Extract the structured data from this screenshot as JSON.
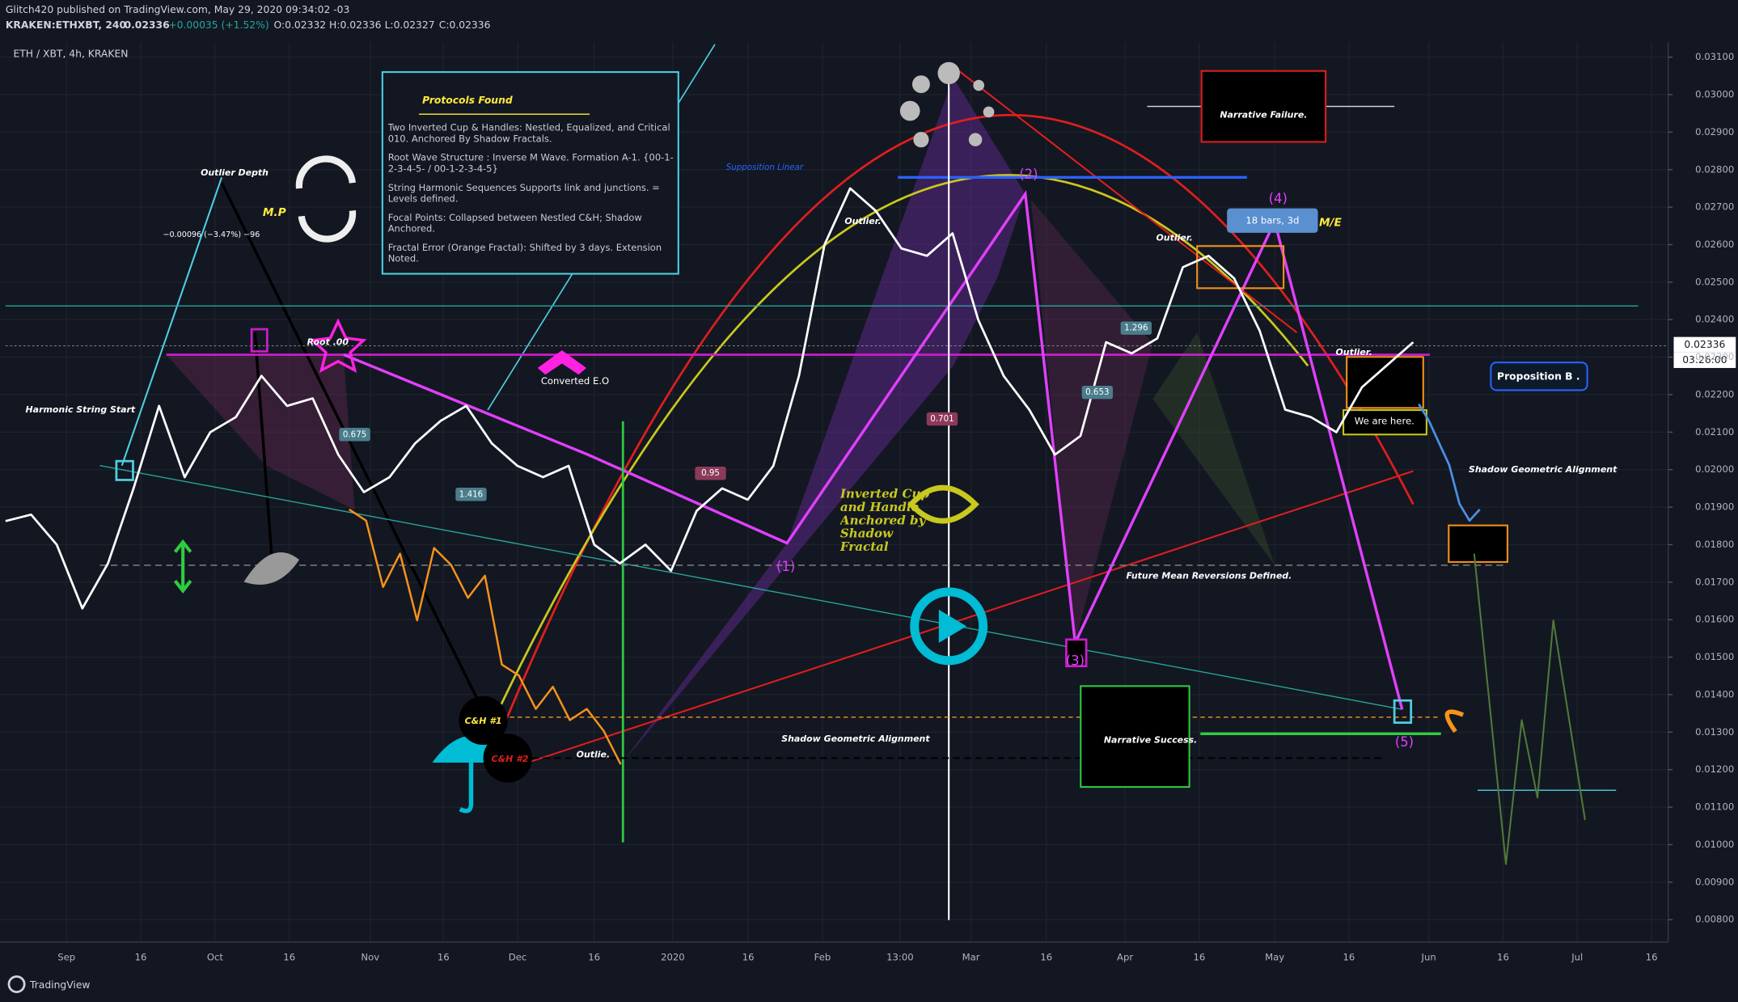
{
  "header": {
    "author_line": "Glitch420 published on TradingView.com, May 29, 2020 09:34:02 -03",
    "symbol": "KRAKEN:ETHXBT, 240",
    "price": 0.02336,
    "change": "+0.00035 (+1.52%)",
    "ohlc": [
      "O:0.02332",
      "H:0.02336",
      "L:0.02327",
      "C:0.02336"
    ]
  },
  "chart_data": {
    "type": "line",
    "title": "ETH / XBT, 4h, KRAKEN",
    "series": [
      {
        "color": "#ffffff",
        "values": [
          0.01863,
          0.0188,
          0.018,
          0.0163,
          0.0175,
          0.0195,
          0.0217,
          0.0198,
          0.021,
          0.0214,
          0.0225,
          0.0217,
          0.0219,
          0.0204,
          0.0194,
          0.0198,
          0.0207,
          0.0213,
          0.0217,
          0.0207,
          0.0201,
          0.0198,
          0.0201,
          0.018,
          0.0175,
          0.018,
          0.0173,
          0.0189,
          0.0195,
          0.0192,
          0.0201,
          0.0225,
          0.026,
          0.0275,
          0.0269,
          0.0259,
          0.0257,
          0.0263,
          0.024,
          0.0225,
          0.0216,
          0.0204,
          0.0209,
          0.0234,
          0.0231,
          0.0235,
          0.0254,
          0.0257,
          0.0251,
          0.0237,
          0.0216,
          0.0214,
          0.021,
          0.0222,
          0.0228,
          0.0234
        ]
      },
      {
        "color": "#f7931a",
        "values": [
          0.01894,
          0.01864,
          0.01687,
          0.01776,
          0.01598,
          0.01791,
          0.01746,
          0.01658,
          0.01717,
          0.0148,
          0.01451,
          0.01362,
          0.01421,
          0.01332,
          0.01362,
          0.01303,
          0.01214
        ]
      },
      {
        "color": "#4a90e2",
        "values": [
          0.02175,
          0.0213,
          0.02071,
          0.02012,
          0.01909,
          0.01864,
          0.01894
        ]
      },
      {
        "color": "#4f7a3a",
        "values": [
          0.01776,
          0.01362,
          0.00948,
          0.01332,
          0.01125,
          0.01598,
          0.01332,
          0.01066
        ]
      }
    ],
    "ylim": [
      0.0074,
      0.0314
    ],
    "yticks": [
      {
        "value": 0.031,
        "label": "0.03100"
      },
      {
        "value": 0.03,
        "label": "0.03000"
      },
      {
        "value": 0.029,
        "label": "0.02900"
      },
      {
        "value": 0.028,
        "label": "0.02800"
      },
      {
        "value": 0.027,
        "label": "0.02700"
      },
      {
        "value": 0.026,
        "label": "0.02600"
      },
      {
        "value": 0.025,
        "label": "0.02500"
      },
      {
        "value": 0.024,
        "label": "0.02400"
      },
      {
        "value": 0.023,
        "label": "0.02300"
      },
      {
        "value": 0.022,
        "label": "0.02200"
      },
      {
        "value": 0.021,
        "label": "0.02100"
      },
      {
        "value": 0.02,
        "label": "0.02000"
      },
      {
        "value": 0.019,
        "label": "0.01900"
      },
      {
        "value": 0.018,
        "label": "0.01800"
      },
      {
        "value": 0.017,
        "label": "0.01700"
      },
      {
        "value": 0.016,
        "label": "0.01600"
      },
      {
        "value": 0.015,
        "label": "0.01500"
      },
      {
        "value": 0.014,
        "label": "0.01400"
      },
      {
        "value": 0.013,
        "label": "0.01300"
      },
      {
        "value": 0.012,
        "label": "0.01200"
      },
      {
        "value": 0.011,
        "label": "0.01100"
      },
      {
        "value": 0.01,
        "label": "0.01000"
      },
      {
        "value": 0.009,
        "label": "0.00900"
      },
      {
        "value": 0.008,
        "label": "0.00800"
      }
    ],
    "x_labels": [
      "Sep",
      "16",
      "Oct",
      "16",
      "Nov",
      "16",
      "Dec",
      "16",
      "2020",
      "16",
      "Feb",
      "13:00",
      "Mar",
      "16",
      "Apr",
      "16",
      "May",
      "16",
      "Jun",
      "16",
      "Jul",
      "16"
    ],
    "last_time": "03:26:00",
    "grid": true,
    "annotations": {
      "protocols_title": "Protocols Found",
      "protocols": [
        "Two Inverted Cup & Handles: Nestled, Equalized, and Critical 010. Anchored By Shadow Fractals.",
        "Root Wave Structure : Inverse M Wave. Formation A-1. {00-1-2-3-4-5- / 00-1-2-3-4-5}",
        "String Harmonic Sequences Supports link and junctions. = Levels defined.",
        "Focal Points: Collapsed between Nestled C&H; Shadow Anchored.",
        "Fractal Error (Orange Fractal): Shifted by 3 days. Extension Noted."
      ],
      "narrative_failure": "Narrative Failure.",
      "narrative_success": "Narrative Success.",
      "supposition": "Supposition Linear",
      "outlier_depth": "Outlier Depth",
      "depth_measure": "−0.00096 (−3.47%) −96",
      "mp": "M.P",
      "root": "Root .00",
      "harmonic_start": "Harmonic String Start",
      "converted": "Converted E.O",
      "inverted_cup": "Inverted Cup and Handle Anchored by Shadow Fractal",
      "bars": "18 bars, 3d",
      "me": "M/E",
      "outlier": "Outlier.",
      "outlie": "Outlie.",
      "proposition": "Proposition B .",
      "we_are_here": "We are here.",
      "shadow_alignment": "Shadow Geometric Alignment",
      "future_mean": "Future Mean Reversions Defined.",
      "ch1": "C&H #1",
      "ch2": "C&H #2",
      "waves": [
        "(1)",
        "(2)",
        "(3)",
        "(4)",
        "(5)"
      ],
      "fib_labels": [
        "0.675",
        "1.416",
        "0.95",
        "1.296",
        "0.653",
        "0.701"
      ]
    }
  },
  "footer": "TradingView"
}
